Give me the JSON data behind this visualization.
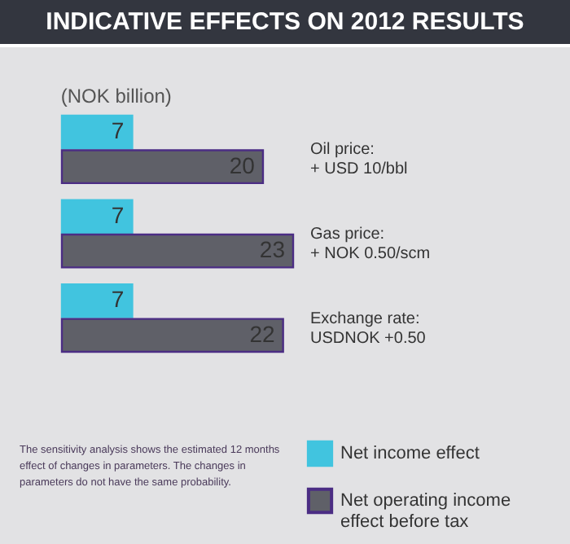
{
  "chart_data": {
    "type": "bar",
    "orientation": "horizontal",
    "title": "INDICATIVE EFFECTS ON 2012 RESULTS",
    "subtitle": "(NOK billion)",
    "categories": [
      "Oil price:\n+ USD 10/bbl",
      "Gas price:\n+ NOK 0.50/scm",
      "Exchange rate:\nUSDNOK +0.50"
    ],
    "series": [
      {
        "name": "Net income effect",
        "color": "#41c4df",
        "values": [
          7,
          7,
          7
        ]
      },
      {
        "name": "Net operating income effect before tax",
        "color": "#5f6068",
        "values": [
          20,
          23,
          22
        ]
      }
    ],
    "data_labels": true,
    "legend": "bottom right",
    "annotations": [
      "The sensitivity analysis shows the estimated 12 months effect of changes in parameters. The changes in parameters do not have the same probability."
    ]
  }
}
